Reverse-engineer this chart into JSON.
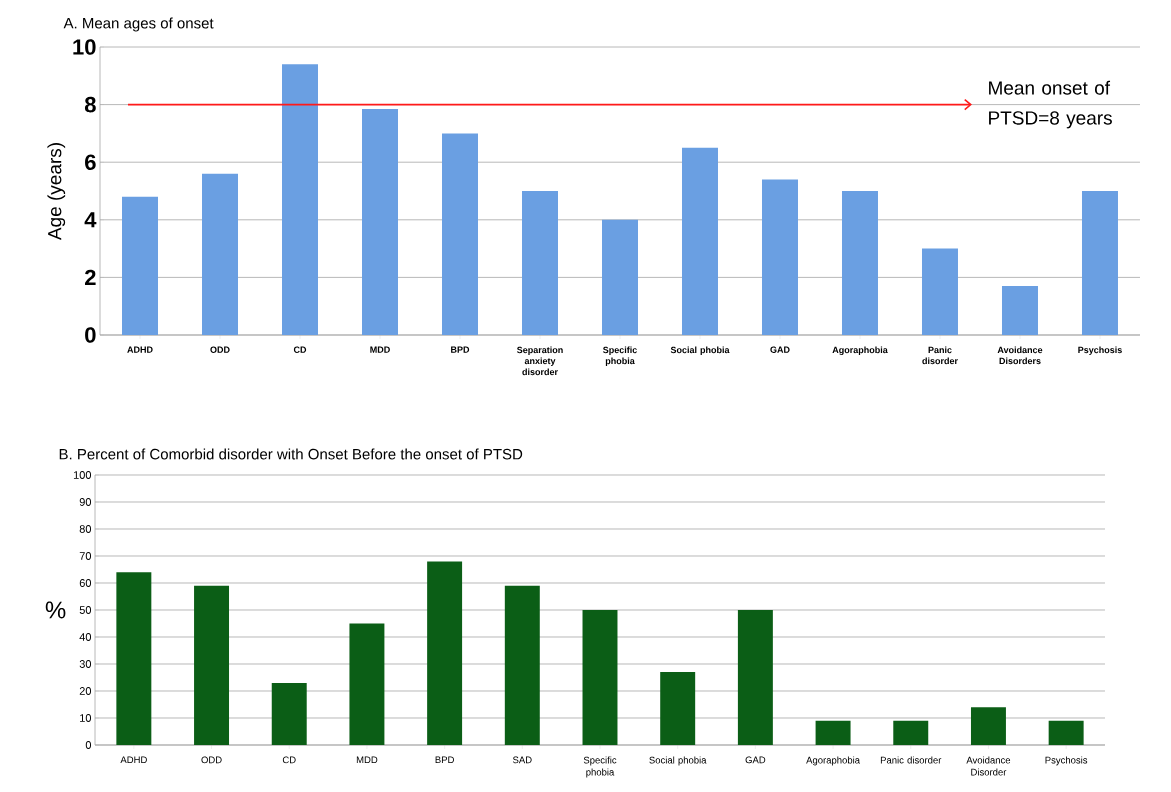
{
  "chart_data": [
    {
      "type": "bar",
      "title": "A. Mean ages of onset",
      "ylabel": "Age (years)",
      "categories": [
        "ADHD",
        "ODD",
        "CD",
        "MDD",
        "BPD",
        "Separation anxiety disorder",
        "Specific phobia",
        "Social phobia",
        "GAD",
        "Agoraphobia",
        "Panic disorder",
        "Avoidance Disorders",
        "Psychosis"
      ],
      "values": [
        4.8,
        5.6,
        9.4,
        7.85,
        7.0,
        5.0,
        4.0,
        6.5,
        5.4,
        5.0,
        3.0,
        1.7,
        5.0
      ],
      "color": "#6a9fe2",
      "ylim": [
        0,
        10
      ],
      "yticks": [
        0,
        2,
        4,
        6,
        8,
        10
      ],
      "grid": "y",
      "ref_lines": [
        {
          "axis": "y",
          "value": 8,
          "label": "Mean onset of PTSD=8 years",
          "color": "#ff1a1a"
        }
      ]
    },
    {
      "type": "bar",
      "title": "B.  Percent of Comorbid disorder with Onset Before the onset of PTSD",
      "ylabel": "%",
      "categories": [
        "ADHD",
        "ODD",
        "CD",
        "MDD",
        "BPD",
        "SAD",
        "Specific phobia",
        "Social phobia",
        "GAD",
        "Agoraphobia",
        "Panic disorder",
        "Avoidance Disorder",
        "Psychosis"
      ],
      "values": [
        64,
        59,
        23,
        45,
        68,
        59,
        50,
        27,
        50,
        9,
        9,
        14,
        9
      ],
      "color": "#0b5e16",
      "ylim": [
        0,
        100
      ],
      "yticks": [
        0,
        10,
        20,
        30,
        40,
        50,
        60,
        70,
        80,
        90,
        100
      ],
      "grid": "y"
    }
  ]
}
